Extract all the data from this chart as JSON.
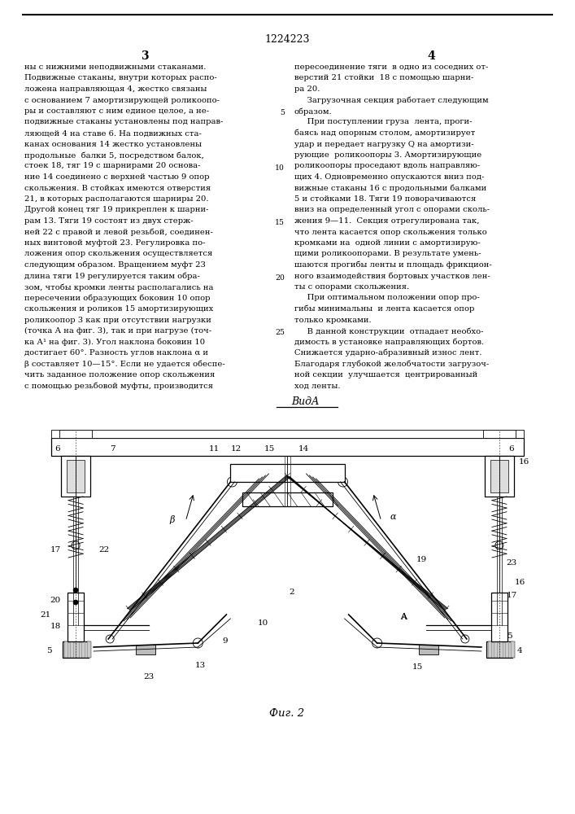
{
  "page_number_center": "1224223",
  "col_left_number": "3",
  "col_right_number": "4",
  "text_left": [
    "ны с нижними неподвижными стаканами.",
    "Подвижные стаканы, внутри которых распо-",
    "ложена направляющая 4, жестко связаны",
    "с основанием 7 амортизирующей роликоопо-",
    "ры и составляют с ним единое целое, а не-",
    "подвижные стаканы установлены под направ-",
    "ляющей 4 на ставе 6. На подвижных ста-",
    "канах основания 14 жестко установлены",
    "продольные  балки 5, посредством балок,",
    "стоек 18, тяг 19 с шарнирами 20 основа-",
    "ние 14 соединено с верхней частью 9 опор",
    "скольжения. В стойках имеются отверстия",
    "21, в которых располагаются шарниры 20.",
    "Другой конец тяг 19 прикреплен к шарни-",
    "рам 13. Тяги 19 состоят из двух стерж-",
    "ней 22 с правой и левой резьбой, соединен-",
    "ных винтовой муфтой 23. Регулировка по-",
    "ложения опор скольжения осуществляется",
    "следующим образом. Вращением муфт 23",
    "длина тяги 19 регулируется таким обра-",
    "зом, чтобы кромки ленты располагались на",
    "пересечении образующих боковин 10 опор",
    "скольжения и роликов 15 амортизирующих",
    "роликоопор 3 как при отсутствии нагрузки",
    "(точка А на фиг. 3), так и при нагрузе (точ-",
    "ка А¹ на фиг. 3). Угол наклона боковин 10",
    "достигает 60°. Разность углов наклона α и",
    "β составляет 10—15°. Если не удается обеспе-",
    "чить заданное положение опор скольжения",
    "с помощью резьбовой муфты, производится"
  ],
  "text_right": [
    "пересоединение тяги  в одно из соседних от-",
    "верстий 21 стойки  18 с помощью шарни-",
    "ра 20.",
    "     Загрузочная секция работает следующим",
    "образом.",
    "     При поступлении груза  лента, проги-",
    "баясь над опорным столом, амортизирует",
    "удар и передает нагрузку Q на амортизи-",
    "рующие  роликоопоры 3. Амортизирующие",
    "роликоопоры проседают вдоль направляю-",
    "щих 4. Одновременно опускаются вниз под-",
    "вижные стаканы 16 с продольными балками",
    "5 и стойками 18. Тяги 19 поворачиваются",
    "вниз на определенный угол с опорами сколь-",
    "жения 9—11.  Секция отрегулирована так,",
    "что лента касается опор скольжения только",
    "кромками на  одной линии с амортизирую-",
    "щими роликоопорами. В результате умень-",
    "шаются прогибы ленты и площадь фрикцион-",
    "ного взаимодействия бортовых участков лен-",
    "ты с опорами скольжения.",
    "     При оптимальном положении опор про-",
    "гибы минимальны  и лента касается опор",
    "только кромками.",
    "     В данной конструкции  отпадает необхо-",
    "димость в установке направляющих бортов.",
    "Снижается ударно-абразивный износ лент.",
    "Благодаря глубокой желобчатости загрузоч-",
    "ной секции  улучшается  центрированный",
    "ход ленты."
  ],
  "line_numbers": [
    5,
    10,
    15,
    20,
    25
  ],
  "view_label": "ВидА",
  "fig_label": "Фиг. 2",
  "background_color": "#ffffff",
  "text_color": "#000000",
  "font_size_body": 7.2,
  "font_size_page_num": 9,
  "font_size_col_num": 10
}
